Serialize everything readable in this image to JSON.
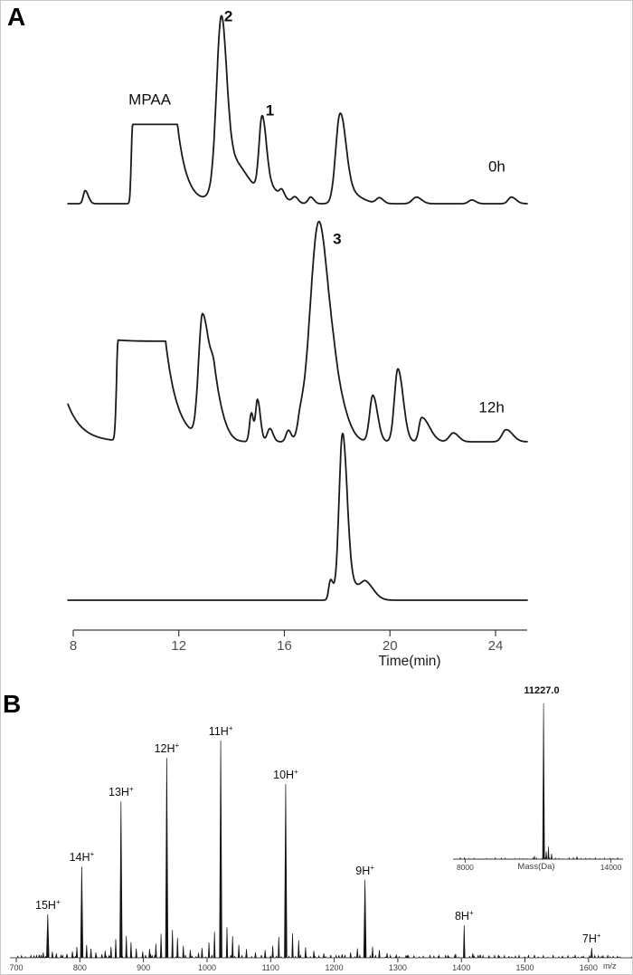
{
  "figure": {
    "background": "#ffffff",
    "line_color": "#1a1a1a",
    "axis_color": "#3a3a3a"
  },
  "chart_data": [
    {
      "type": "line",
      "panel_label": "A",
      "title": "",
      "xlabel": "Time(min)",
      "ylabel": "",
      "x_range": [
        8,
        25.2
      ],
      "x_ticks": [
        8,
        12,
        16,
        20,
        24
      ],
      "grid": false,
      "traces": [
        {
          "name": "crude-peptide-0h",
          "label": "0h",
          "annotations": [
            {
              "text": "MPAA",
              "bold": false,
              "t": 10.9,
              "rel": 0.56
            },
            {
              "text": "2",
              "bold": true,
              "t": 13.88,
              "rel": 1.005
            },
            {
              "text": "1",
              "bold": true,
              "t": 15.45,
              "rel": 0.5
            },
            {
              "text": "0h",
              "bold": false,
              "t": 24.05,
              "rel": 0.2
            }
          ],
          "components": [
            {
              "kind": "peak",
              "c": 8.45,
              "h": 0.07,
              "wl": 0.07,
              "wr": 0.12
            },
            {
              "kind": "plateau",
              "a": 10.25,
              "b": 11.95,
              "h": 0.425,
              "rise": 0.05,
              "fall": 0.35
            },
            {
              "kind": "peak",
              "c": 13.6,
              "h": 0.78,
              "wl": 0.17,
              "wr": 0.2
            },
            {
              "kind": "peak",
              "c": 13.8,
              "h": 0.26,
              "wl": 0.35,
              "wr": 0.75
            },
            {
              "kind": "peak",
              "c": 15.15,
              "h": 0.36,
              "wl": 0.11,
              "wr": 0.16
            },
            {
              "kind": "peak",
              "c": 15.3,
              "h": 0.08,
              "wl": 0.2,
              "wr": 0.5
            },
            {
              "kind": "peak",
              "c": 15.9,
              "h": 0.035,
              "wl": 0.08,
              "wr": 0.1
            },
            {
              "kind": "peak",
              "c": 16.4,
              "h": 0.03,
              "wl": 0.1,
              "wr": 0.12
            },
            {
              "kind": "peak",
              "c": 17.0,
              "h": 0.035,
              "wl": 0.1,
              "wr": 0.12
            },
            {
              "kind": "peak",
              "c": 18.1,
              "h": 0.44,
              "wl": 0.16,
              "wr": 0.22
            },
            {
              "kind": "peak",
              "c": 18.3,
              "h": 0.07,
              "wl": 0.2,
              "wr": 0.5
            },
            {
              "kind": "peak",
              "c": 19.6,
              "h": 0.03,
              "wl": 0.12,
              "wr": 0.15
            },
            {
              "kind": "peak",
              "c": 21.0,
              "h": 0.035,
              "wl": 0.15,
              "wr": 0.2
            },
            {
              "kind": "peak",
              "c": 23.1,
              "h": 0.02,
              "wl": 0.12,
              "wr": 0.15
            },
            {
              "kind": "peak",
              "c": 24.6,
              "h": 0.035,
              "wl": 0.12,
              "wr": 0.18
            }
          ]
        },
        {
          "name": "crude-peptide-12h",
          "label": "12h",
          "annotations": [
            {
              "text": "3",
              "bold": true,
              "t": 18.0,
              "rel": 0.92
            },
            {
              "text": "12h",
              "bold": false,
              "t": 23.85,
              "rel": 0.155
            }
          ],
          "components": [
            {
              "kind": "decay",
              "c": 7.8,
              "h": 0.17,
              "fall": 0.55
            },
            {
              "kind": "plateau",
              "a": 9.7,
              "b": 11.5,
              "h": 0.455,
              "rise": 0.06,
              "fall": 0.45
            },
            {
              "kind": "peak",
              "c": 12.9,
              "h": 0.56,
              "wl": 0.15,
              "wr": 0.3
            },
            {
              "kind": "peak",
              "c": 13.35,
              "h": 0.16,
              "wl": 0.12,
              "wr": 0.35
            },
            {
              "kind": "peak",
              "c": 14.75,
              "h": 0.13,
              "wl": 0.07,
              "wr": 0.08
            },
            {
              "kind": "peak",
              "c": 14.98,
              "h": 0.19,
              "wl": 0.07,
              "wr": 0.11
            },
            {
              "kind": "peak",
              "c": 15.45,
              "h": 0.06,
              "wl": 0.1,
              "wr": 0.12
            },
            {
              "kind": "peak",
              "c": 16.15,
              "h": 0.05,
              "wl": 0.09,
              "wr": 0.1
            },
            {
              "kind": "peak",
              "c": 16.6,
              "h": 0.06,
              "wl": 0.09,
              "wr": 0.12
            },
            {
              "kind": "peak",
              "c": 17.3,
              "h": 0.99,
              "wl": 0.33,
              "wr": 0.36
            },
            {
              "kind": "peak",
              "c": 17.95,
              "h": 0.2,
              "wl": 0.25,
              "wr": 0.4
            },
            {
              "kind": "peak",
              "c": 19.35,
              "h": 0.21,
              "wl": 0.12,
              "wr": 0.18
            },
            {
              "kind": "peak",
              "c": 20.3,
              "h": 0.33,
              "wl": 0.13,
              "wr": 0.2
            },
            {
              "kind": "peak",
              "c": 21.2,
              "h": 0.11,
              "wl": 0.1,
              "wr": 0.3
            },
            {
              "kind": "peak",
              "c": 22.4,
              "h": 0.04,
              "wl": 0.15,
              "wr": 0.2
            },
            {
              "kind": "peak",
              "c": 24.4,
              "h": 0.055,
              "wl": 0.15,
              "wr": 0.25
            }
          ]
        },
        {
          "name": "purified-product",
          "label": "",
          "annotations": [],
          "components": [
            {
              "kind": "peak",
              "c": 17.75,
              "h": 0.12,
              "wl": 0.07,
              "wr": 0.1
            },
            {
              "kind": "peak",
              "c": 18.2,
              "h": 0.94,
              "wl": 0.13,
              "wr": 0.17
            },
            {
              "kind": "peak",
              "c": 18.45,
              "h": 0.1,
              "wl": 0.25,
              "wr": 0.45
            },
            {
              "kind": "peak",
              "c": 19.1,
              "h": 0.08,
              "wl": 0.18,
              "wr": 0.3
            }
          ]
        }
      ]
    },
    {
      "type": "line",
      "panel_label": "B",
      "title": "",
      "xlabel": "m/z",
      "ylabel": "",
      "x_range": [
        690,
        1660
      ],
      "x_ticks": [
        700,
        800,
        900,
        1000,
        1100,
        1200,
        1300,
        1400,
        1500,
        1600
      ],
      "grid": false,
      "peaks": [
        {
          "display": "15H+",
          "charge": 15,
          "mz": 749.5,
          "h": 0.2
        },
        {
          "display": "14H+",
          "charge": 14,
          "mz": 802.9,
          "h": 0.42
        },
        {
          "display": "13H+",
          "charge": 13,
          "mz": 864.7,
          "h": 0.72
        },
        {
          "display": "12H+",
          "charge": 12,
          "mz": 936.6,
          "h": 0.92
        },
        {
          "display": "11H+",
          "charge": 11,
          "mz": 1021.6,
          "h": 1.0
        },
        {
          "display": "10H+",
          "charge": 10,
          "mz": 1123.7,
          "h": 0.8
        },
        {
          "display": "9H+",
          "charge": 9,
          "mz": 1248.4,
          "h": 0.36
        },
        {
          "display": "8H+",
          "charge": 8,
          "mz": 1404.4,
          "h": 0.15
        },
        {
          "display": "7H+",
          "charge": 7,
          "mz": 1604.9,
          "h": 0.045
        }
      ],
      "inset": {
        "peak_label": "11227.0",
        "mass": 11227.0,
        "xlabel": "Mass(Da)",
        "x_ticks": [
          8000,
          14000
        ],
        "x_range": [
          7500,
          14500
        ],
        "satellites": [
          {
            "mass": 11340,
            "h": 0.05
          },
          {
            "mass": 11430,
            "h": 0.08
          },
          {
            "mass": 11560,
            "h": 0.035
          },
          {
            "mass": 10850,
            "h": 0.02
          },
          {
            "mass": 12600,
            "h": 0.015
          }
        ]
      }
    }
  ]
}
